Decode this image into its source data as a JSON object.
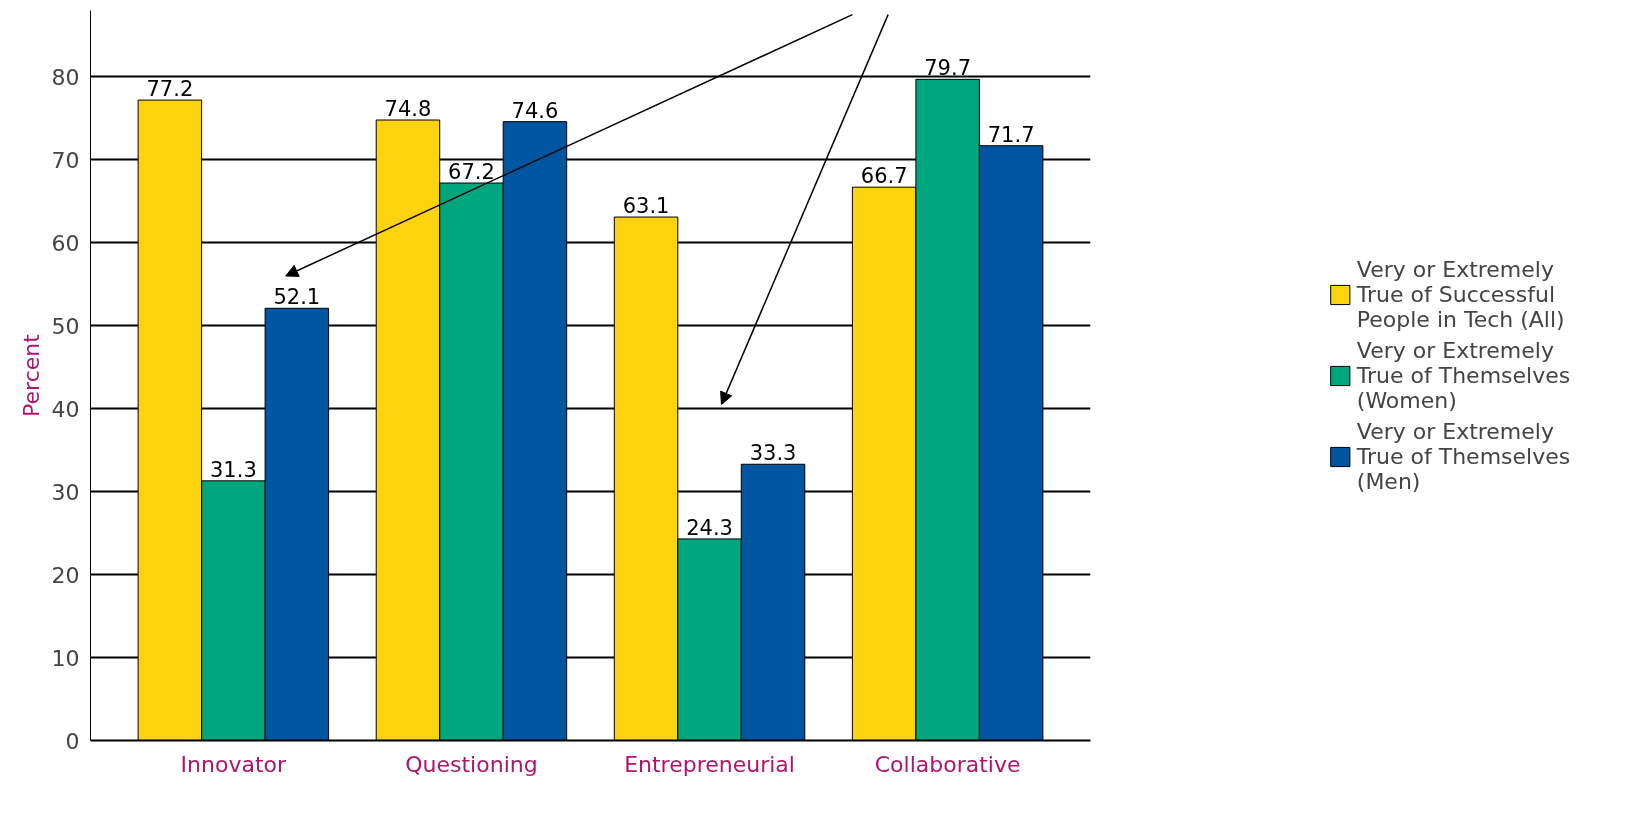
{
  "chart_data": {
    "type": "bar",
    "ylabel": "Percent",
    "categories": [
      "Innovator",
      "Questioning",
      "Entrepreneurial",
      "Collaborative"
    ],
    "series": [
      {
        "name": "Very or Extremely True of Successful People in Tech (All)",
        "color": "#fdd20e",
        "values": [
          77.2,
          74.8,
          63.1,
          66.7
        ]
      },
      {
        "name": "Very or Extremely True of Themselves (Women)",
        "color": "#00a77e",
        "values": [
          31.3,
          67.2,
          24.3,
          79.7
        ]
      },
      {
        "name": "Very or Extremely True of Themselves (Men)",
        "color": "#0055a0",
        "values": [
          52.1,
          74.6,
          33.3,
          71.7
        ]
      }
    ],
    "ylim": [
      0,
      88
    ],
    "yticks": [
      0,
      10,
      20,
      30,
      40,
      50,
      60,
      70,
      80
    ],
    "grid": "y",
    "legend": "right",
    "data_labels": true
  }
}
